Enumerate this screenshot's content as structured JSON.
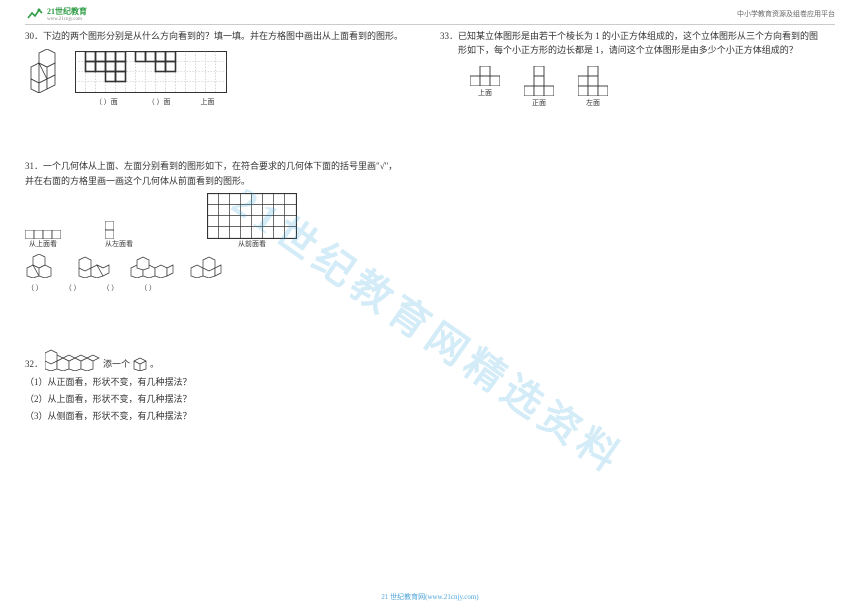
{
  "header": {
    "logo_primary": "21世纪教育",
    "logo_url": "www.21cnjy.com",
    "right_text": "中小学教育资源及组卷应用平台"
  },
  "watermark": "21世纪教育网精选资料",
  "footer": "21 世纪教育网(www.21cnjy.com)",
  "q30": {
    "num": "30．",
    "text": "下边的两个图形分别是从什么方向看到的？填一填。并在方格图中画出从上面看到的图形。",
    "face_a": "（     ）面",
    "face_b": "（     ）面",
    "face_top": "上面",
    "grid": {
      "rows": 4,
      "cols": 15,
      "cell": 10
    },
    "shape_a_cells": [
      [
        0,
        0
      ],
      [
        0,
        1
      ],
      [
        1,
        0
      ],
      [
        1,
        1
      ],
      [
        2,
        0
      ],
      [
        2,
        1
      ],
      [
        3,
        0
      ],
      [
        3,
        1
      ],
      [
        2,
        2
      ],
      [
        3,
        2
      ]
    ],
    "shape_a_origin": [
      1,
      0
    ],
    "shape_b_cells": [
      [
        0,
        0
      ],
      [
        1,
        0
      ],
      [
        2,
        0
      ],
      [
        3,
        0
      ],
      [
        2,
        1
      ],
      [
        3,
        1
      ]
    ],
    "shape_b_origin": [
      6,
      0
    ],
    "colors": {
      "line": "#333333",
      "dotted": "#bbbbbb",
      "border": "#333333"
    }
  },
  "q31": {
    "num": "31．",
    "text1": "一个几何体从上面、左面分别看到的图形如下，在符合要求的几何体下面的括号里画\"√\"，",
    "text2": "并在右面的方格里画一画这个几何体从前面看到的图形。",
    "cap_top": "从上面看",
    "cap_left": "从左面看",
    "cap_front": "从前面看",
    "paren": "（   ）",
    "grid": {
      "rows": 4,
      "cols": 8,
      "cell": 11
    },
    "colors": {
      "line": "#333333",
      "fill": "#f5f5f5"
    }
  },
  "q32": {
    "num": "32．",
    "tail": "添一个",
    "period": "。",
    "items": [
      "（1）从正面看，形状不变，有几种摆法？",
      "（2）从上面看，形状不变，有几种摆法？",
      "（3）从侧面看，形状不变，有几种摆法？"
    ]
  },
  "q33": {
    "num": "33．",
    "line1": "已知某立体图形是由若干个棱长为 1 的小正方体组成的，这个立体图形从三个方向看到的图",
    "line2": "形如下，每个小正方形的边长都是 1，请问这个立体图形是由多少个小正方体组成的？",
    "caps": [
      "上面",
      "正面",
      "左面"
    ],
    "colors": {
      "line": "#333333"
    }
  }
}
